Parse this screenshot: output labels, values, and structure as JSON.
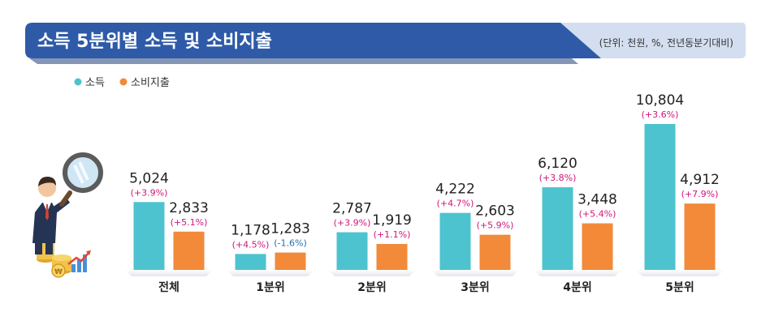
{
  "header": {
    "title": "소득 5분위별 소득 및 소비지출",
    "unit_note": "(단위: 천원, %, 전년동분기대비)",
    "band_color": "#2e5aa8",
    "note_band_color": "#d3dff0"
  },
  "chart_data": {
    "type": "bar",
    "categories": [
      "전체",
      "1분위",
      "2분위",
      "3분위",
      "4분위",
      "5분위"
    ],
    "series": [
      {
        "name": "소득",
        "color": "#4dc3cf",
        "values": [
          5024,
          1178,
          2787,
          4222,
          6120,
          10804
        ],
        "value_labels": [
          "5,024",
          "1,178",
          "2,787",
          "4,222",
          "6,120",
          "10,804"
        ],
        "change_labels": [
          "(+3.9%)",
          "(+4.5%)",
          "(+3.9%)",
          "(+4.7%)",
          "(+3.8%)",
          "(+3.6%)"
        ]
      },
      {
        "name": "소비지출",
        "color": "#f28a3a",
        "values": [
          2833,
          1283,
          1919,
          2603,
          3448,
          4912
        ],
        "value_labels": [
          "2,833",
          "1,283",
          "1,919",
          "2,603",
          "3,448",
          "4,912"
        ],
        "change_labels": [
          "(+5.1%)",
          "(-1.6%)",
          "(+1.1%)",
          "(+5.9%)",
          "(+5.4%)",
          "(+7.9%)"
        ]
      }
    ],
    "increase_color": "#d0157a",
    "decrease_color": "#1f6fb5",
    "legend_position": "top-left",
    "grid": false
  }
}
